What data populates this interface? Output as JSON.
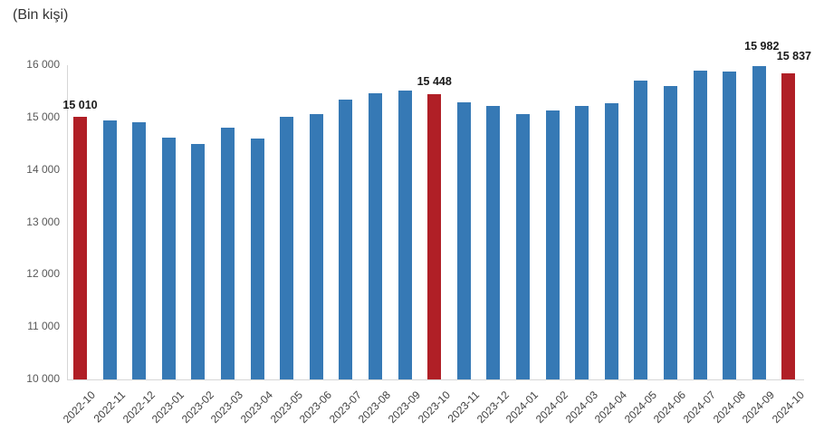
{
  "chart_data": {
    "type": "bar",
    "title": "",
    "xlabel": "",
    "ylabel": "(Bin kişi)",
    "categories": [
      "2022-10",
      "2022-11",
      "2022-12",
      "2023-01",
      "2023-02",
      "2023-03",
      "2023-04",
      "2023-05",
      "2023-06",
      "2023-07",
      "2023-08",
      "2023-09",
      "2023-10",
      "2023-11",
      "2023-12",
      "2024-01",
      "2024-02",
      "2024-03",
      "2024-04",
      "2024-05",
      "2024-06",
      "2024-07",
      "2024-08",
      "2024-09",
      "2024-10"
    ],
    "values": [
      15010,
      14940,
      14905,
      14610,
      14495,
      14815,
      14600,
      15020,
      15070,
      15350,
      15460,
      15525,
      15448,
      15285,
      15225,
      15075,
      15130,
      15225,
      15283,
      15700,
      15600,
      15900,
      15880,
      15982,
      15837
    ],
    "highlighted_indices": [
      0,
      12,
      24
    ],
    "data_labels": [
      {
        "index": 0,
        "text": "15 010"
      },
      {
        "index": 12,
        "text": "15 448"
      },
      {
        "index": 23,
        "text": "15 982"
      },
      {
        "index": 24,
        "text": "15 837"
      }
    ],
    "ylim": [
      10000,
      16000
    ],
    "ytick_values": [
      16000,
      15000,
      14000,
      13000,
      12000,
      11000,
      10000
    ],
    "ytick_labels": [
      "16 000",
      "15 000",
      "14 000",
      "13 000",
      "12 000",
      "11 000",
      "10 000"
    ],
    "grid": false,
    "legend": false,
    "bar_color": "#3679B5",
    "highlight_color": "#B01F26"
  }
}
